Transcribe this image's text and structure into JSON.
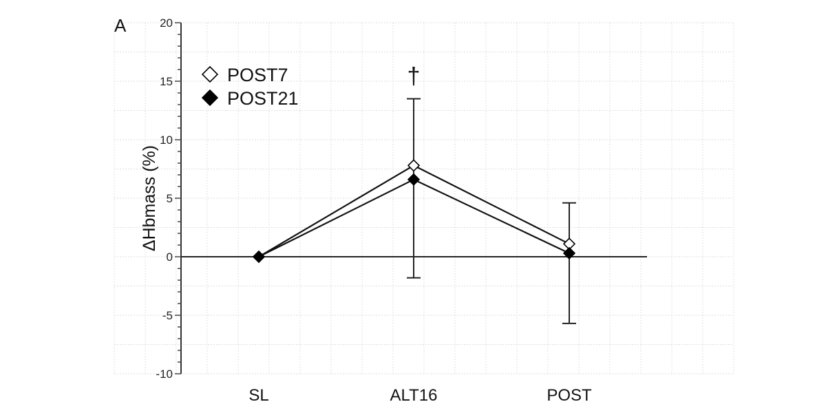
{
  "panel_label": "A",
  "chart_data": {
    "type": "line",
    "title": "",
    "ylabel": "ΔHbmass (%)",
    "xlabel": "",
    "categories": [
      "SL",
      "ALT16",
      "POST"
    ],
    "ylim": [
      -10,
      20
    ],
    "yticks": [
      -10,
      -5,
      0,
      5,
      10,
      15,
      20
    ],
    "grid": true,
    "legend_placement": "top-left",
    "series": [
      {
        "name": "POST7",
        "marker": "open-diamond",
        "values": [
          0,
          7.8,
          1.1
        ]
      },
      {
        "name": "POST21",
        "marker": "filled-diamond",
        "values": [
          0,
          6.6,
          0.3
        ]
      }
    ],
    "error_bars": [
      {
        "category": "ALT16",
        "upper": 13.5,
        "lower": -1.8
      },
      {
        "category": "POST",
        "upper": 4.6,
        "lower": -5.7
      }
    ],
    "annotations": [
      {
        "category": "ALT16",
        "text": "†"
      }
    ]
  }
}
